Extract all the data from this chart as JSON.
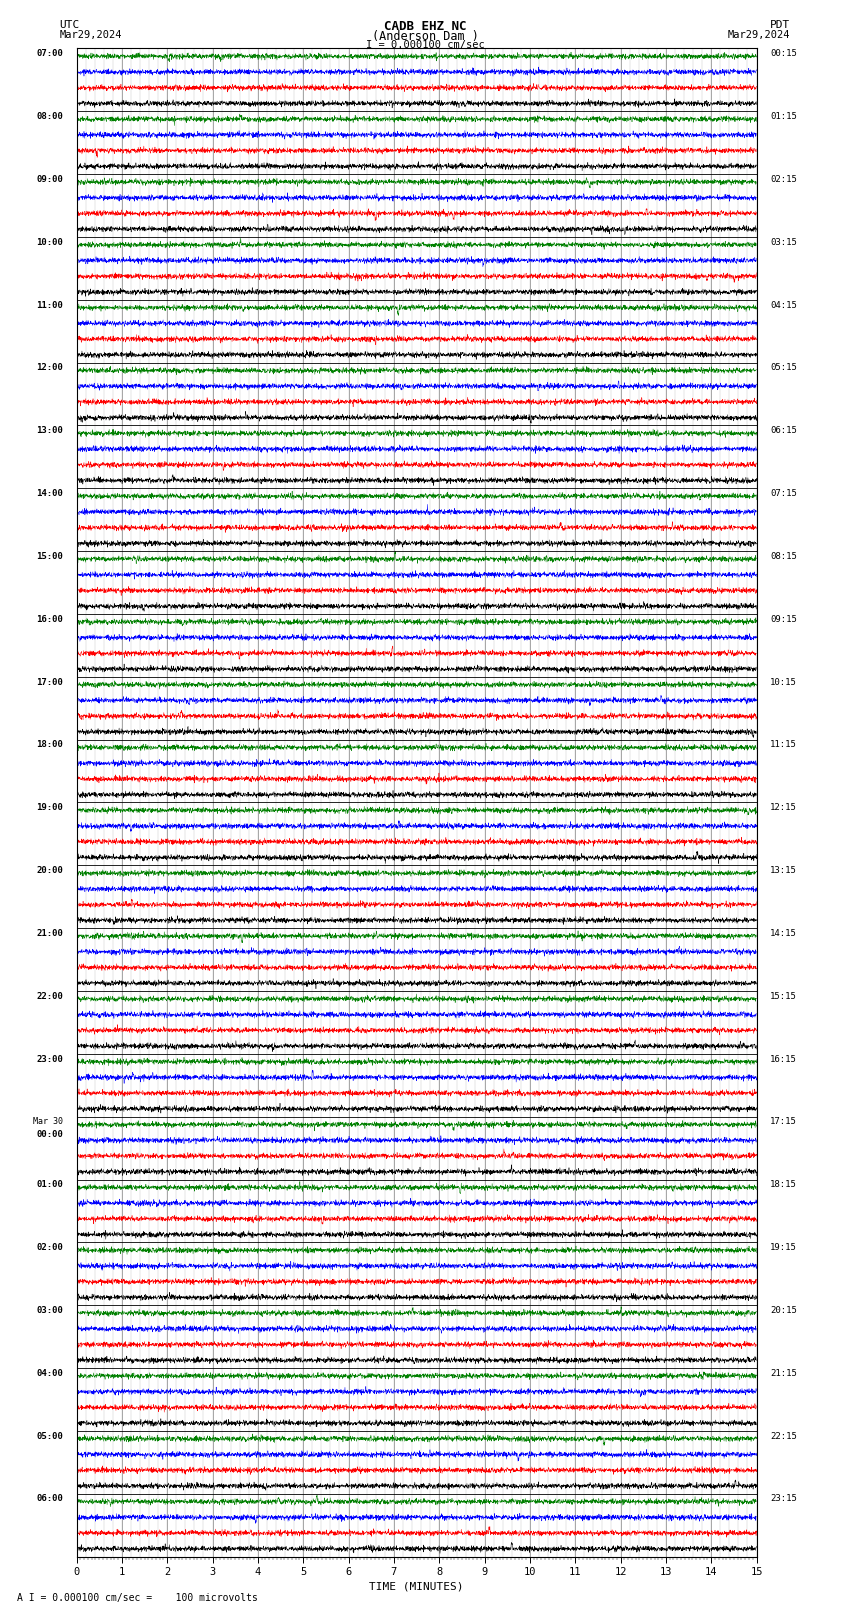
{
  "title_line1": "CADB EHZ NC",
  "title_line2": "(Anderson Dam )",
  "scale_label": "I = 0.000100 cm/sec",
  "utc_label": "UTC",
  "pdt_label": "PDT",
  "date_left": "Mar29,2024",
  "date_right": "Mar29,2024",
  "xlabel": "TIME (MINUTES)",
  "footnote": "A I = 0.000100 cm/sec =    100 microvolts",
  "xlim": [
    0,
    15
  ],
  "xticks": [
    0,
    1,
    2,
    3,
    4,
    5,
    6,
    7,
    8,
    9,
    10,
    11,
    12,
    13,
    14,
    15
  ],
  "bg_color": "#ffffff",
  "grid_color": "#888888",
  "trace_colors": [
    "#000000",
    "#ff0000",
    "#0000ff",
    "#008000"
  ],
  "num_hours": 24,
  "traces_per_hour": 4,
  "left_labels_utc": [
    "07:00",
    "08:00",
    "09:00",
    "10:00",
    "11:00",
    "12:00",
    "13:00",
    "14:00",
    "15:00",
    "16:00",
    "17:00",
    "18:00",
    "19:00",
    "20:00",
    "21:00",
    "22:00",
    "23:00",
    "Mar 30\n00:00",
    "01:00",
    "02:00",
    "03:00",
    "04:00",
    "05:00",
    "06:00"
  ],
  "right_labels_pdt": [
    "00:15",
    "01:15",
    "02:15",
    "03:15",
    "04:15",
    "05:15",
    "06:15",
    "07:15",
    "08:15",
    "09:15",
    "10:15",
    "11:15",
    "12:15",
    "13:15",
    "14:15",
    "15:15",
    "16:15",
    "17:15",
    "18:15",
    "19:15",
    "20:15",
    "21:15",
    "22:15",
    "23:15"
  ]
}
